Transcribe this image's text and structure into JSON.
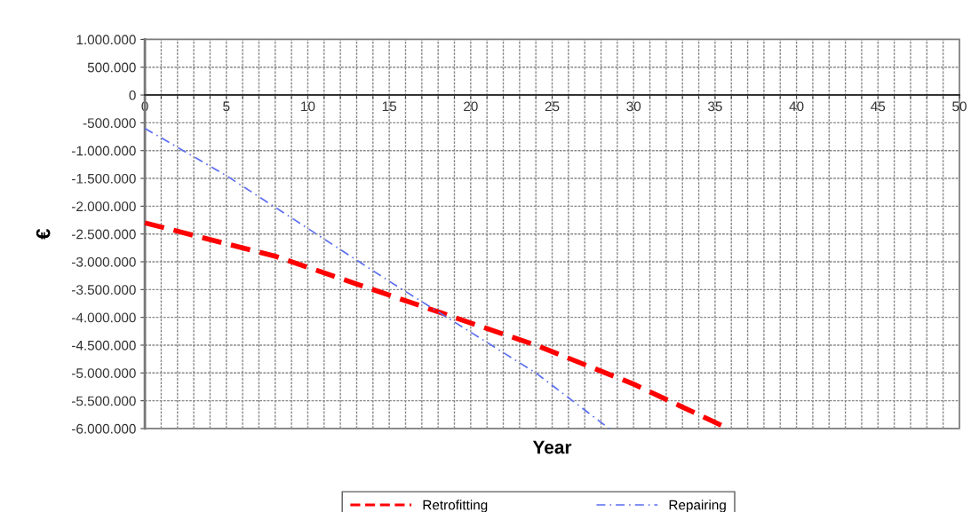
{
  "chart_data": {
    "type": "line",
    "xlabel": "Year",
    "ylabel": "€",
    "series": [
      {
        "name": "Retrofitting",
        "color": "#ff0000",
        "line_style": "dashed",
        "x": [
          0,
          8,
          13,
          18,
          24,
          30,
          35.8
        ],
        "values": [
          -2300000,
          -2900000,
          -3400000,
          -3900000,
          -4500000,
          -5200000,
          -6000000
        ]
      },
      {
        "name": "Repairing",
        "color": "#5a6ef0",
        "line_style": "dashdot",
        "x": [
          0,
          5,
          10,
          15,
          18,
          24,
          28.5
        ],
        "values": [
          -600000,
          -1450000,
          -2400000,
          -3350000,
          -3900000,
          -5000000,
          -6000000
        ]
      }
    ],
    "xlim": [
      0,
      50
    ],
    "xticks": [
      0,
      {
        "value": 1,
        "label": null
      },
      {
        "value": 2,
        "label": null
      },
      {
        "value": 3,
        "label": null
      },
      {
        "value": 4,
        "label": null
      },
      5,
      {
        "value": 6,
        "label": null
      },
      {
        "value": 7,
        "label": null
      },
      {
        "value": 8,
        "label": null
      },
      {
        "value": 9,
        "label": null
      },
      10,
      {
        "value": 11,
        "label": null
      },
      {
        "value": 12,
        "label": null
      },
      {
        "value": 13,
        "label": null
      },
      {
        "value": 14,
        "label": null
      },
      15,
      {
        "value": 16,
        "label": null
      },
      {
        "value": 17,
        "label": null
      },
      {
        "value": 18,
        "label": null
      },
      {
        "value": 19,
        "label": null
      },
      20,
      {
        "value": 21,
        "label": null
      },
      {
        "value": 22,
        "label": null
      },
      {
        "value": 23,
        "label": null
      },
      {
        "value": 24,
        "label": null
      },
      25,
      {
        "value": 26,
        "label": null
      },
      {
        "value": 27,
        "label": null
      },
      {
        "value": 28,
        "label": null
      },
      {
        "value": 29,
        "label": null
      },
      30,
      {
        "value": 31,
        "label": null
      },
      {
        "value": 32,
        "label": null
      },
      {
        "value": 33,
        "label": null
      },
      {
        "value": 34,
        "label": null
      },
      35,
      {
        "value": 36,
        "label": null
      },
      {
        "value": 37,
        "label": null
      },
      {
        "value": 38,
        "label": null
      },
      {
        "value": 39,
        "label": null
      },
      40,
      {
        "value": 41,
        "label": null
      },
      {
        "value": 42,
        "label": null
      },
      {
        "value": 43,
        "label": null
      },
      {
        "value": 44,
        "label": null
      },
      45,
      {
        "value": 46,
        "label": null
      },
      {
        "value": 47,
        "label": null
      },
      {
        "value": 48,
        "label": null
      },
      {
        "value": 49,
        "label": null
      },
      50
    ],
    "ylim": [
      -6000000,
      1000000
    ],
    "yticks": [
      {
        "value": 1000000,
        "label": "1.000.000"
      },
      {
        "value": 500000,
        "label": "500.000"
      },
      {
        "value": 0,
        "label": "0"
      },
      {
        "value": -500000,
        "label": "-500.000"
      },
      {
        "value": -1000000,
        "label": "-1.000.000"
      },
      {
        "value": -1500000,
        "label": "-1.500.000"
      },
      {
        "value": -2000000,
        "label": "-2.000.000"
      },
      {
        "value": -2500000,
        "label": "-2.500.000"
      },
      {
        "value": -3000000,
        "label": "-3.000.000"
      },
      {
        "value": -3500000,
        "label": "-3.500.000"
      },
      {
        "value": -4000000,
        "label": "-4.000.000"
      },
      {
        "value": -4500000,
        "label": "-4.500.000"
      },
      {
        "value": -5000000,
        "label": "-5.000.000"
      },
      {
        "value": -5500000,
        "label": "-5.500.000"
      },
      {
        "value": -6000000,
        "label": "-6.000.000"
      }
    ],
    "grid": true,
    "legend": "bottom",
    "marker": "none"
  }
}
